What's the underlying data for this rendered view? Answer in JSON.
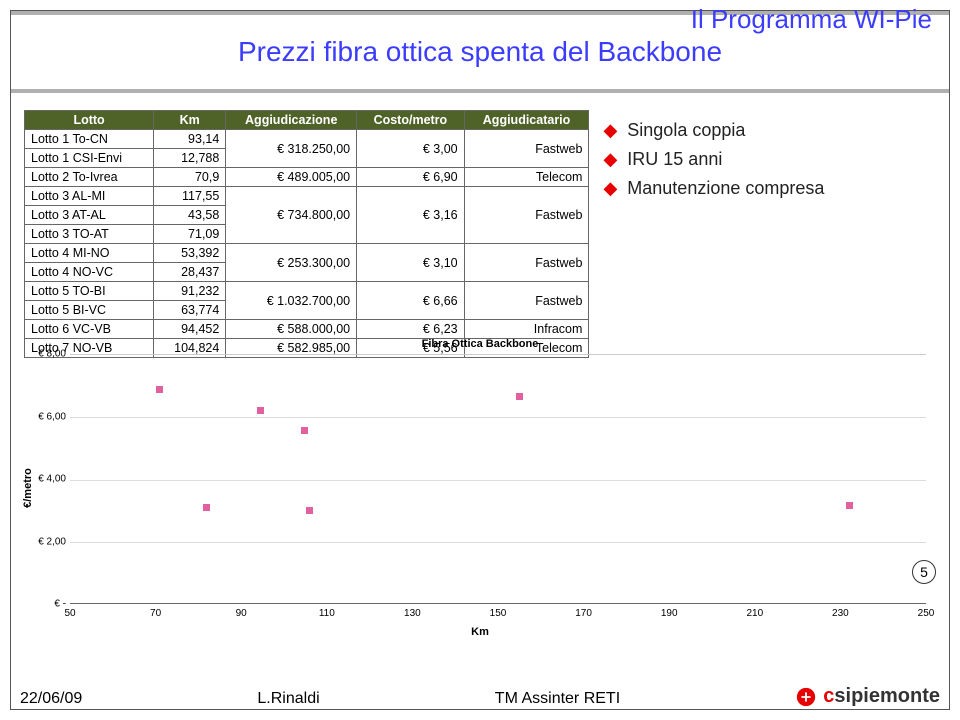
{
  "program_label": "Il Programma WI-Pie",
  "title": "Prezzi fibra ottica spenta del Backbone",
  "table": {
    "header_bg": "#4f6228",
    "columns": [
      "Lotto",
      "Km",
      "Aggiudicazione",
      "Costo/metro",
      "Aggiudicatario"
    ],
    "rows": [
      {
        "label": "Lotto 1 To-CN",
        "km": "93,14",
        "cost": "€ 318.250,00",
        "cmetro": "€ 3,00",
        "winner": "Fastweb",
        "span": 2
      },
      {
        "label": "Lotto 1 CSI-Envi",
        "km": "12,788"
      },
      {
        "label": "Lotto 2 To-Ivrea",
        "km": "70,9",
        "cost": "€ 489.005,00",
        "cmetro": "€ 6,90",
        "winner": "Telecom",
        "span": 1
      },
      {
        "label": "Lotto 3 AL-MI",
        "km": "117,55",
        "cost": "€ 734.800,00",
        "cmetro": "€ 3,16",
        "winner": "Fastweb",
        "span": 3
      },
      {
        "label": "Lotto 3 AT-AL",
        "km": "43,58"
      },
      {
        "label": "Lotto 3 TO-AT",
        "km": "71,09"
      },
      {
        "label": "Lotto 4 MI-NO",
        "km": "53,392",
        "cost": "€ 253.300,00",
        "cmetro": "€ 3,10",
        "winner": "Fastweb",
        "span": 2
      },
      {
        "label": "Lotto 4 NO-VC",
        "km": "28,437"
      },
      {
        "label": "Lotto 5 TO-BI",
        "km": "91,232",
        "cost": "€ 1.032.700,00",
        "cmetro": "€ 6,66",
        "winner": "Fastweb",
        "span": 2
      },
      {
        "label": "Lotto 5 BI-VC",
        "km": "63,774"
      },
      {
        "label": "Lotto 6 VC-VB",
        "km": "94,452",
        "cost": "€ 588.000,00",
        "cmetro": "€ 6,23",
        "winner": "Infracom",
        "span": 1
      },
      {
        "label": "Lotto 7 NO-VB",
        "km": "104,824",
        "cost": "€ 582.985,00",
        "cmetro": "€ 5,56",
        "winner": "Telecom",
        "span": 1
      }
    ]
  },
  "bullets": [
    "Singola coppia",
    "IRU 15 anni",
    "Manutenzione compresa"
  ],
  "bullet_color": "#e60000",
  "bullet_text_color": "#222",
  "chart": {
    "title": "Fibra Ottica Backbone",
    "type": "scatter",
    "xlabel": "Km",
    "ylabel": "€/metro",
    "xlim": [
      50,
      250
    ],
    "xtick_step": 20,
    "ylim": [
      0,
      8
    ],
    "ytick_step": 2,
    "ytick_prefix": "€ ",
    "ytick_format": "0,00",
    "point_color": "#e060a0",
    "points": [
      {
        "x": 70.9,
        "y": 6.9
      },
      {
        "x": 81.83,
        "y": 3.1
      },
      {
        "x": 94.452,
        "y": 6.23
      },
      {
        "x": 104.824,
        "y": 5.56
      },
      {
        "x": 105.93,
        "y": 3.0
      },
      {
        "x": 155.0,
        "y": 6.66
      },
      {
        "x": 232.2,
        "y": 3.16
      }
    ],
    "grid_color": "#dddddd",
    "background_color": "#ffffff"
  },
  "page_number": "5",
  "footer": {
    "date": "22/06/09",
    "author": "L.Rinaldi",
    "context": "TM Assinter RETI",
    "logo_text_first": "c",
    "logo_text_rest": "sipiemonte",
    "logo_color": "#e60000"
  }
}
